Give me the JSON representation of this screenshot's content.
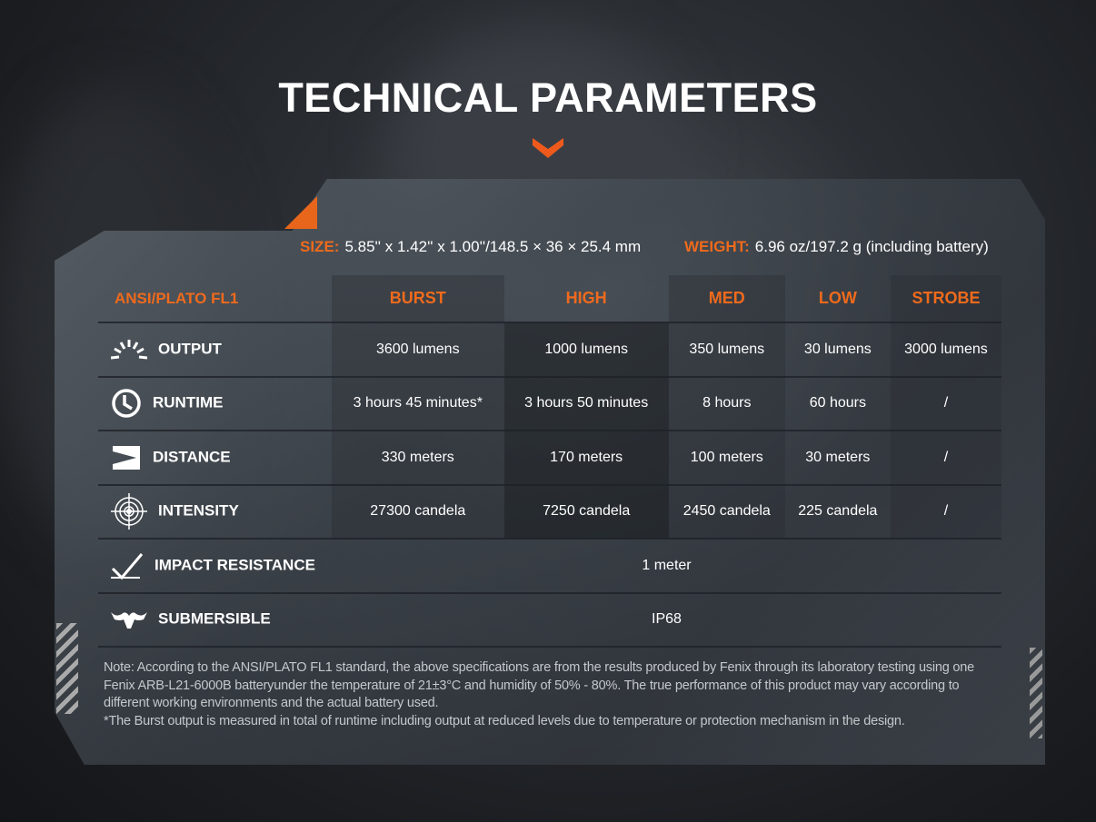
{
  "title": "TECHNICAL PARAMETERS",
  "colors": {
    "accent": "#ef6a1c"
  },
  "size": {
    "label": "SIZE:",
    "value": "5.85'' x 1.42'' x 1.00''/148.5 × 36 × 25.4 mm"
  },
  "weight": {
    "label": "WEIGHT:",
    "value": "6.96 oz/197.2 g (including battery)"
  },
  "table": {
    "header": [
      "ANSI/PLATO FL1",
      "BURST",
      "HIGH",
      "MED",
      "LOW",
      "STROBE"
    ],
    "rows": [
      {
        "icon": "output-burst-icon",
        "label": "OUTPUT",
        "values": [
          "3600 lumens",
          "1000 lumens",
          "350 lumens",
          "30 lumens",
          "3000 lumens"
        ]
      },
      {
        "icon": "clock-icon",
        "label": "RUNTIME",
        "values": [
          "3 hours 45 minutes*",
          "3 hours 50 minutes",
          "8 hours",
          "60 hours",
          "/"
        ]
      },
      {
        "icon": "beam-distance-icon",
        "label": "DISTANCE",
        "values": [
          "330 meters",
          "170 meters",
          "100 meters",
          "30 meters",
          "/"
        ]
      },
      {
        "icon": "target-icon",
        "label": "INTENSITY",
        "values": [
          "27300 candela",
          "7250 candela",
          "2450 candela",
          "225 candela",
          "/"
        ]
      },
      {
        "icon": "impact-icon",
        "label": "IMPACT RESISTANCE",
        "value": "1 meter"
      },
      {
        "icon": "water-icon",
        "label": "SUBMERSIBLE",
        "value": "IP68"
      }
    ]
  },
  "note": [
    "Note: According to the ANSI/PLATO FL1 standard, the above specifications are from the results produced by Fenix through its laboratory testing using one Fenix ARB-L21-6000B batteryunder the temperature of 21±3°C and humidity of 50% - 80%. The true performance of this product may vary according to different working environments and the actual battery used.",
    "*The Burst output is measured in total of runtime including output at reduced levels due to temperature or protection mechanism in the design."
  ]
}
